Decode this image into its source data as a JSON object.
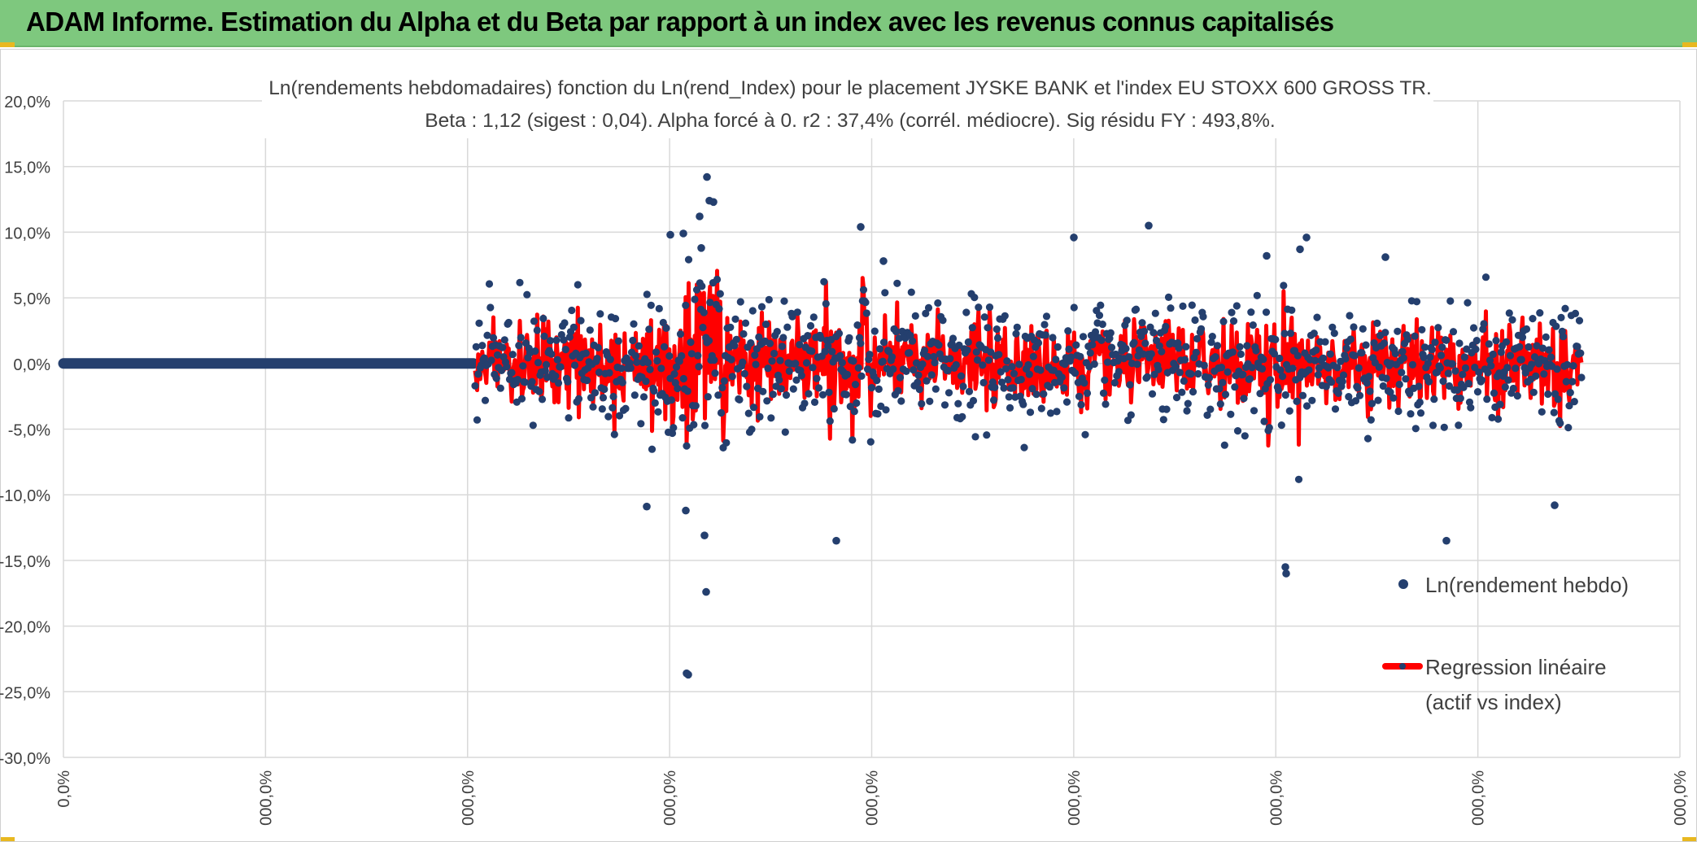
{
  "banner": {
    "title": "ADAM Informe. Estimation du Alpha et du Beta par rapport à un index avec les revenus connus capitalisés"
  },
  "colors": {
    "banner_bg": "#7ec87e",
    "scatter": "#243f6e",
    "regression": "#ff0000",
    "grid": "#d9d9d9",
    "corner_accent": "#e8b820"
  },
  "chart_data": {
    "type": "scatter",
    "title_line1": "Ln(rendements hebdomadaires) fonction du Ln(rend_Index) pour le placement JYSKE BANK et l'index EU STOXX 600 GROSS TR.",
    "title_line2": "Beta : 1,12 (sigest : 0,04). Alpha forcé à 0. r2 : 37,4% (corrél. médiocre). Sig résidu FY : 493,8%.",
    "ylim": [
      -30,
      20
    ],
    "y_ticks": [
      "20,0%",
      "15,0%",
      "10,0%",
      "5,0%",
      "0,0%",
      "-5,0%",
      "-10,0%",
      "-15,0%",
      "-20,0%",
      "-25,0%",
      "-30,0%"
    ],
    "y_tick_values": [
      20,
      15,
      10,
      5,
      0,
      -5,
      -10,
      -15,
      -20,
      -25,
      -30
    ],
    "x_ticks": [
      "0,0%",
      "000,0%",
      "000,0%",
      "000,0%",
      "000,0%",
      "000,0%",
      "000,0%",
      "000,0%",
      "000,0%"
    ],
    "grid": true,
    "legend_position": "right",
    "series": [
      {
        "name": "Ln(rendement hebdo)",
        "kind": "scatter",
        "color": "#243f6e"
      },
      {
        "name": "Regression linéaire (actif vs index)",
        "label_line1": "Regression linéaire",
        "label_line2": "(actif vs index)",
        "kind": "line",
        "color": "#ff0000"
      }
    ],
    "outliers_y": [
      14.2,
      12.4,
      12.3,
      11.2,
      10.5,
      10.4,
      9.9,
      9.8,
      9.6,
      9.6,
      8.8,
      8.7,
      8.2,
      8.1,
      7.8,
      -10.9,
      -11.2,
      -13.1,
      -13.5,
      -13.5,
      -15.5,
      -16.0,
      -17.4,
      -23.6,
      -23.7,
      -10.8
    ]
  }
}
